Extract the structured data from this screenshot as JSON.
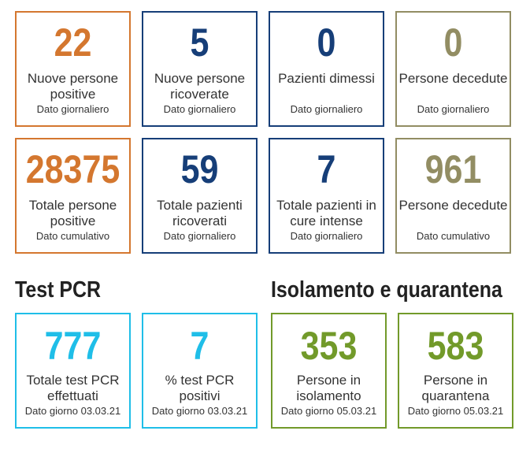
{
  "daily": [
    {
      "value": "22",
      "label": "Nuove persone positive",
      "sub": "Dato giornaliero",
      "color": "#d4772f"
    },
    {
      "value": "5",
      "label": "Nuove persone ricoverate",
      "sub": "Dato giornaliero",
      "color": "#163e78"
    },
    {
      "value": "0",
      "label": "Pazienti dimessi",
      "sub": "Dato giornaliero",
      "color": "#163e78"
    },
    {
      "value": "0",
      "label": "Persone decedute",
      "sub": "Dato giornaliero",
      "color": "#928d63"
    }
  ],
  "totals": [
    {
      "value": "28375",
      "label": "Totale persone positive",
      "sub": "Dato cumulativo",
      "color": "#d4772f"
    },
    {
      "value": "59",
      "label": "Totale pazienti ricoverati",
      "sub": "Dato giornaliero",
      "color": "#163e78"
    },
    {
      "value": "7",
      "label": "Totale pazienti in cure intense",
      "sub": "Dato giornaliero",
      "color": "#163e78"
    },
    {
      "value": "961",
      "label": "Persone decedute",
      "sub": "Dato cumulativo",
      "color": "#928d63"
    }
  ],
  "test_pcr": {
    "title": "Test PCR",
    "cards": [
      {
        "value": "777",
        "label": "Totale test PCR effettuati",
        "sub": "Dato giorno 03.03.21",
        "color": "#1fbee8"
      },
      {
        "value": "7",
        "label": "% test PCR positivi",
        "sub": "Dato giorno 03.03.21",
        "color": "#1fbee8"
      }
    ]
  },
  "isolation": {
    "title": "Isolamento e quarantena",
    "cards": [
      {
        "value": "353",
        "label": "Persone in isolamento",
        "sub": "Dato giorno 05.03.21",
        "color": "#729a2a"
      },
      {
        "value": "583",
        "label": "Persone in quarantena",
        "sub": "Dato giorno 05.03.21",
        "color": "#729a2a"
      }
    ]
  }
}
